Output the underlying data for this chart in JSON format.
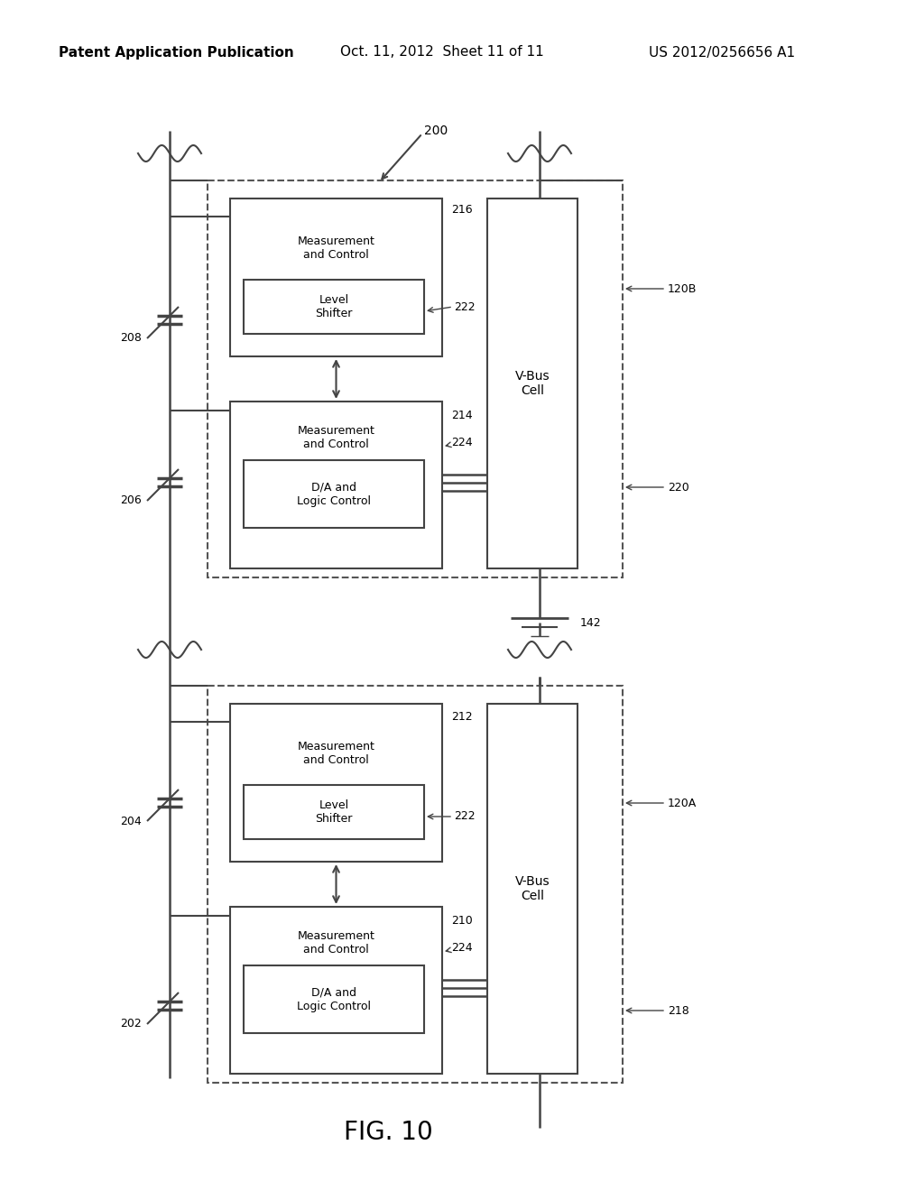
{
  "title": "FIG. 10",
  "header_left": "Patent Application Publication",
  "header_center": "Oct. 11, 2012  Sheet 11 of 11",
  "header_right": "US 2012/0256656 A1",
  "background_color": "#ffffff",
  "text_color": "#000000",
  "diagram_color": "#444444",
  "label_200": "200",
  "label_208": "208",
  "label_206": "206",
  "label_204": "204",
  "label_202": "202",
  "label_142": "142",
  "label_120B": "120B",
  "label_120A": "120A",
  "label_220": "220",
  "label_218": "218",
  "label_216": "216",
  "label_214": "214",
  "label_212": "212",
  "label_210": "210",
  "label_222": "222",
  "label_224": "224",
  "text_meas_ctrl": "Measurement\nand Control",
  "text_level_shifter": "Level\nShifter",
  "text_da_logic": "D/A and\nLogic Control",
  "text_vbus_cell": "V-Bus\nCell"
}
